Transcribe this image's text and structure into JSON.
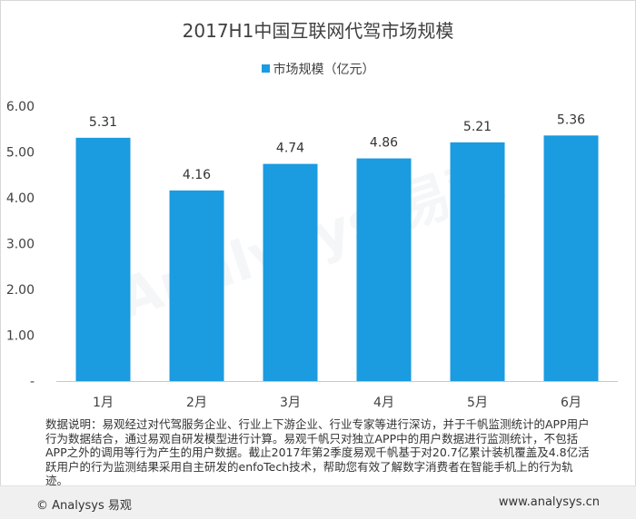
{
  "chart_data": {
    "type": "bar",
    "title": "2017H1中国互联网代驾市场规模",
    "categories": [
      "1月",
      "2月",
      "3月",
      "4月",
      "5月",
      "6月"
    ],
    "series": [
      {
        "name": "市场规模（亿元）",
        "values": [
          5.31,
          4.16,
          4.74,
          4.86,
          5.21,
          5.36
        ]
      }
    ],
    "value_labels": [
      "5.31",
      "4.16",
      "4.74",
      "4.86",
      "5.21",
      "5.36"
    ],
    "y_ticks": [
      "-",
      "1.00",
      "2.00",
      "3.00",
      "4.00",
      "5.00",
      "6.00"
    ],
    "ylim": [
      0,
      6
    ],
    "grid": false,
    "legend_position": "top-center",
    "bar_color": "#1b9be0"
  },
  "note": "数据说明：易观经过对代驾服务企业、行业上下游企业、行业专家等进行深访，并于千帆监测统计的APP用户行为数据结合，通过易观自研发模型进行计算。易观千帆只对独立APP中的用户数据进行监测统计，不包括APP之外的调用等行为产生的用户数据。截止2017年第2季度易观千帆基于对20.7亿累计装机覆盖及4.8亿活跃用户的行为监测结果采用自主研发的enfoTech技术，帮助您有效了解数字消费者在智能手机上的行为轨迹。",
  "footer": {
    "copyright": "© Analysys 易观",
    "website": "www.analysys.cn"
  },
  "watermark": "Analysys 易观"
}
